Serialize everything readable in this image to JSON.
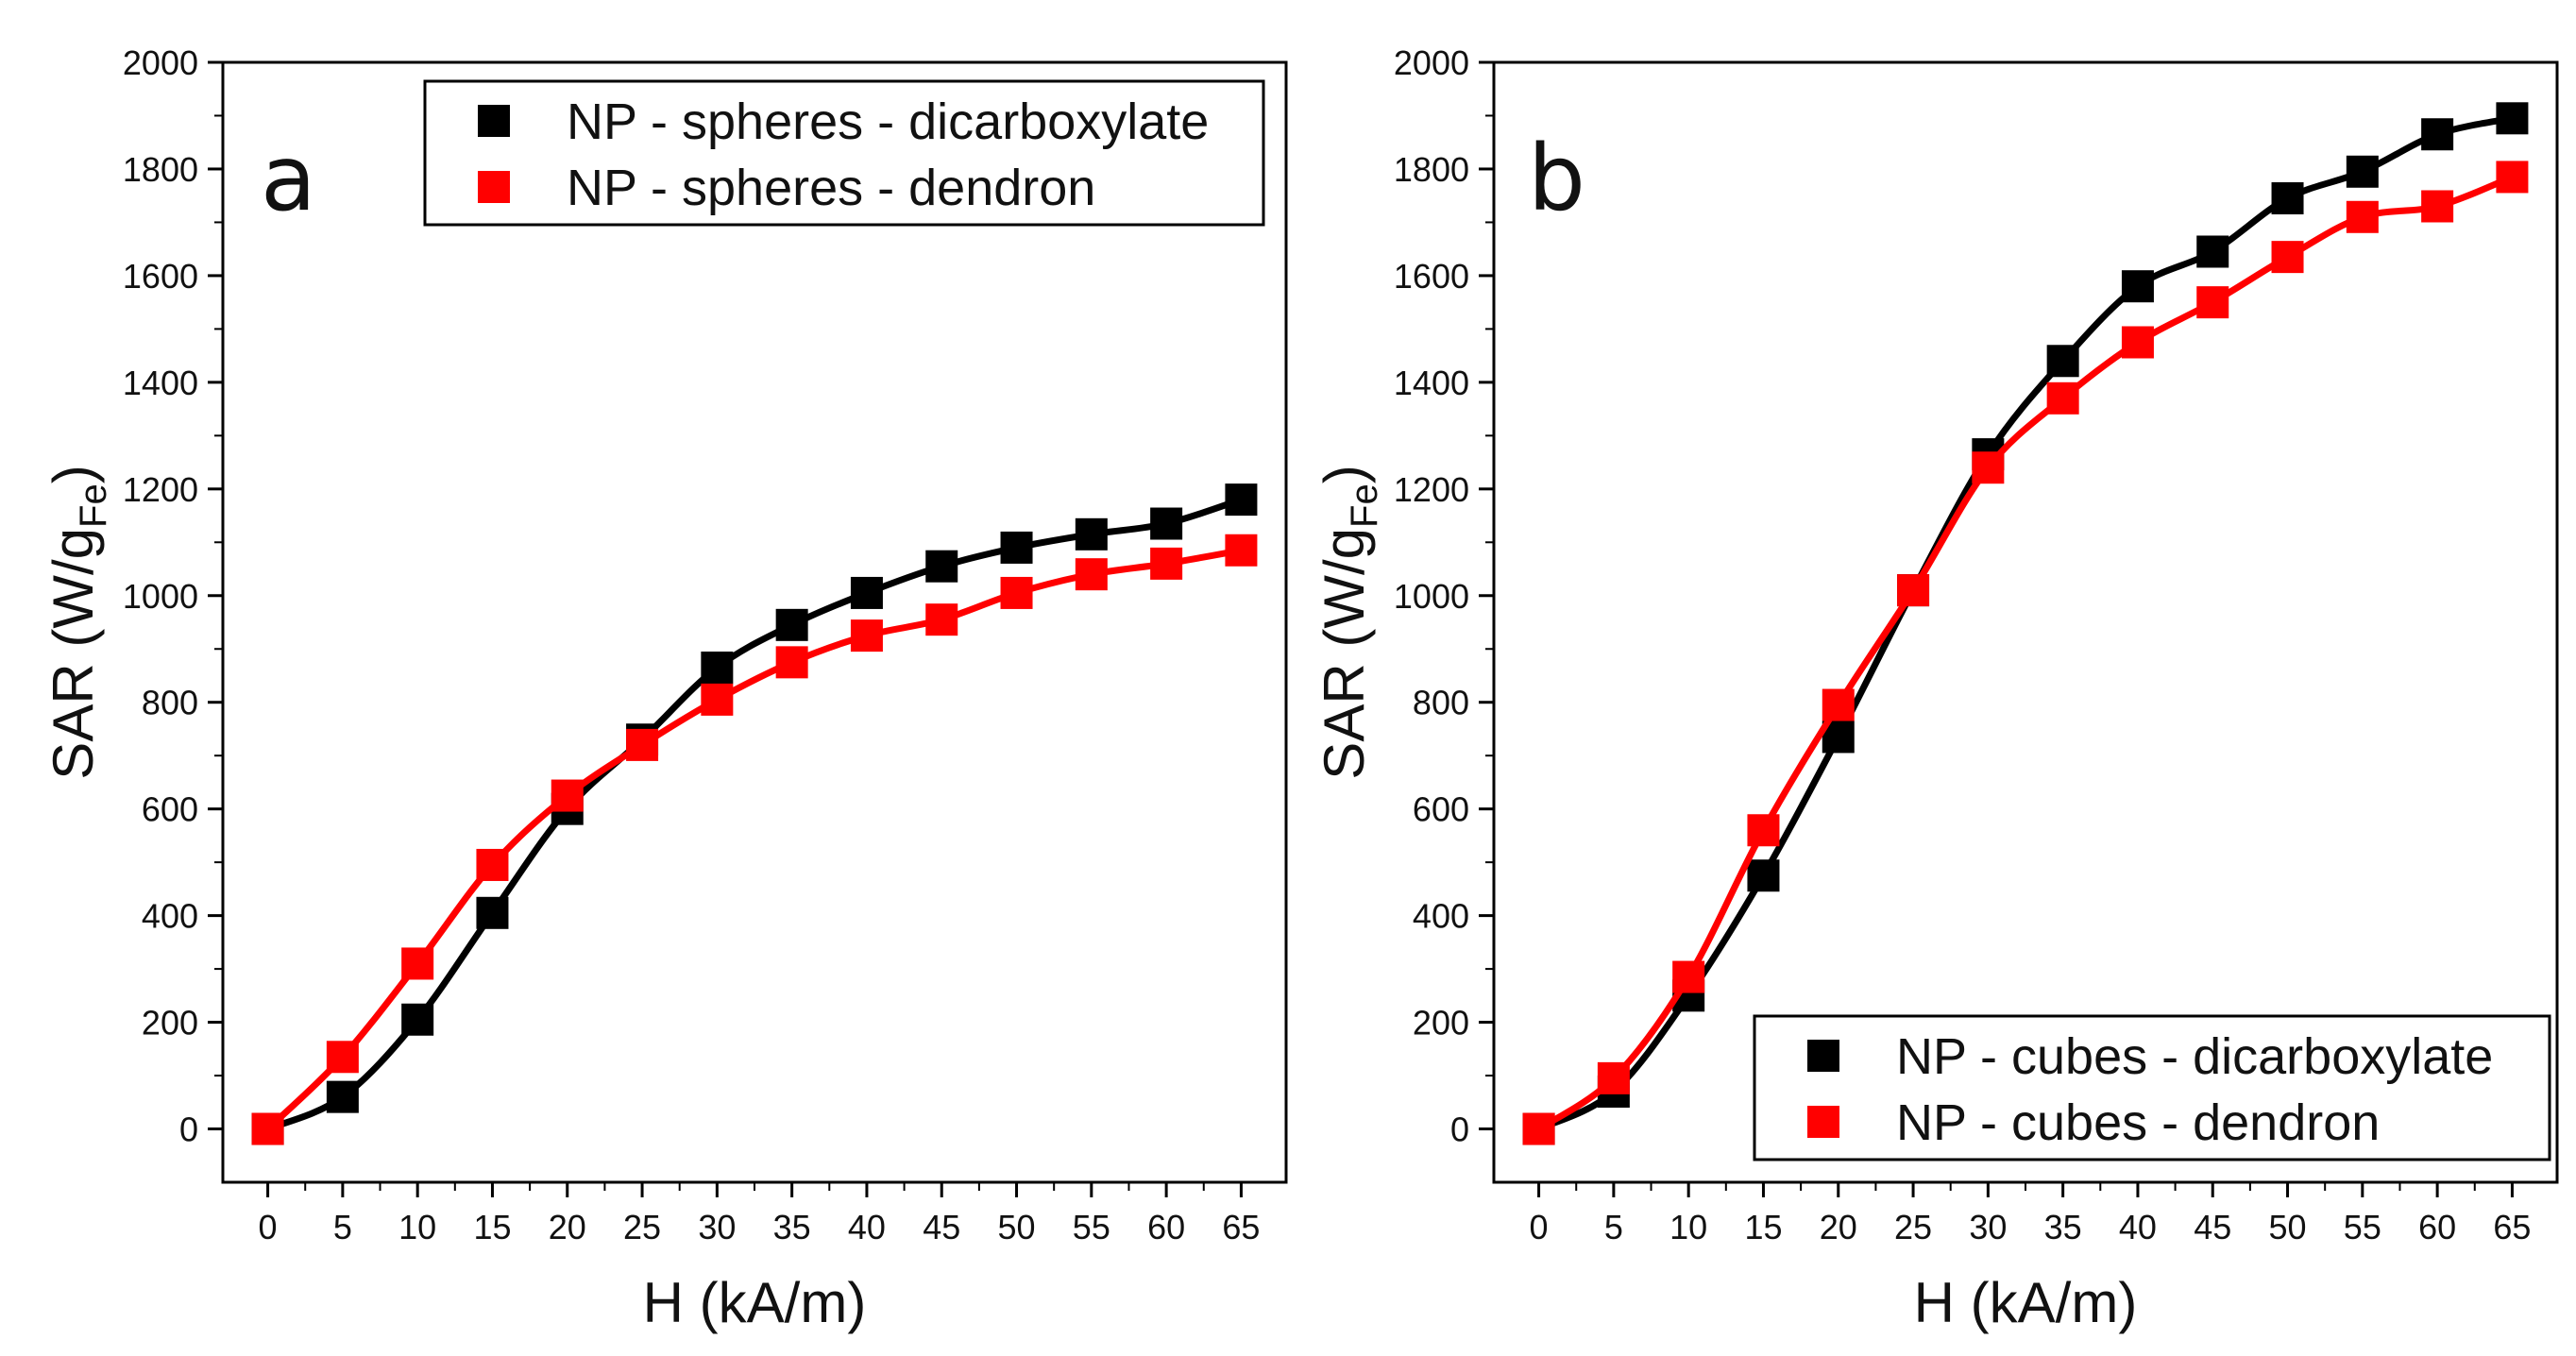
{
  "chart_data": [
    {
      "type": "scatter",
      "panel_label": "a",
      "xlabel": "H (kA/m)",
      "ylabel": {
        "prefix": "SAR (W/g",
        "subscript": "Fe",
        "suffix": ")"
      },
      "xlim": [
        -3,
        68
      ],
      "ylim": [
        -100,
        2000
      ],
      "xticks": [
        0,
        5,
        10,
        15,
        20,
        25,
        30,
        35,
        40,
        45,
        50,
        55,
        60,
        65
      ],
      "yticks": [
        0,
        200,
        400,
        600,
        800,
        1000,
        1200,
        1400,
        1600,
        1800,
        2000
      ],
      "legend_position": "top-right",
      "series": [
        {
          "name": "NP - spheres - dicarboxylate",
          "color": "#000000",
          "x": [
            0,
            5,
            10,
            15,
            20,
            25,
            30,
            35,
            40,
            45,
            50,
            55,
            60,
            65
          ],
          "values": [
            0,
            60,
            205,
            405,
            600,
            730,
            865,
            945,
            1005,
            1055,
            1090,
            1115,
            1135,
            1180
          ]
        },
        {
          "name": "NP - spheres - dendron",
          "color": "#ff0000",
          "x": [
            0,
            5,
            10,
            15,
            20,
            25,
            30,
            35,
            40,
            45,
            50,
            55,
            60,
            65
          ],
          "values": [
            0,
            135,
            310,
            495,
            625,
            720,
            805,
            875,
            925,
            955,
            1005,
            1040,
            1060,
            1085
          ]
        }
      ]
    },
    {
      "type": "scatter",
      "panel_label": "b",
      "xlabel": "H (kA/m)",
      "ylabel": {
        "prefix": "SAR (W/g",
        "subscript": "Fe",
        "suffix": ")"
      },
      "xlim": [
        -3,
        68
      ],
      "ylim": [
        -100,
        2000
      ],
      "xticks": [
        0,
        5,
        10,
        15,
        20,
        25,
        30,
        35,
        40,
        45,
        50,
        55,
        60,
        65
      ],
      "yticks": [
        0,
        200,
        400,
        600,
        800,
        1000,
        1200,
        1400,
        1600,
        1800,
        2000
      ],
      "legend_position": "bottom-right",
      "series": [
        {
          "name": "NP - cubes - dicarboxylate",
          "color": "#000000",
          "x": [
            0,
            5,
            10,
            15,
            20,
            25,
            30,
            35,
            40,
            45,
            50,
            55,
            60,
            65
          ],
          "values": [
            0,
            70,
            250,
            475,
            735,
            1010,
            1265,
            1440,
            1580,
            1645,
            1745,
            1795,
            1865,
            1895
          ]
        },
        {
          "name": "NP - cubes - dendron",
          "color": "#ff0000",
          "x": [
            0,
            5,
            10,
            15,
            20,
            25,
            30,
            35,
            40,
            45,
            50,
            55,
            60,
            65
          ],
          "values": [
            0,
            95,
            285,
            560,
            795,
            1010,
            1240,
            1370,
            1475,
            1550,
            1635,
            1710,
            1730,
            1785
          ]
        }
      ]
    }
  ]
}
